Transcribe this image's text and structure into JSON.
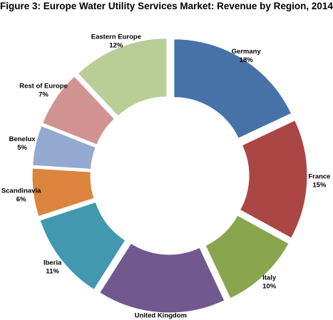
{
  "title": "Figure 3: Europe Water Utility Services Market: Revenue by Region, 2014",
  "chart_data": {
    "type": "pie",
    "variant": "exploded-donut",
    "categories": [
      "Germany",
      "France",
      "Italy",
      "United Kingdom",
      "Iberia",
      "Scandinavia",
      "Benelux",
      "Rest of Europe",
      "Eastern Europe"
    ],
    "values": [
      18,
      15,
      10,
      16,
      11,
      6,
      5,
      7,
      12
    ],
    "labels": [
      "18%",
      "15%",
      "10%",
      "16%",
      "11%",
      "6%",
      "5%",
      "7%",
      "12%"
    ],
    "colors": [
      "#4672A8",
      "#AA4643",
      "#89A54E",
      "#71588F",
      "#4198AF",
      "#DB843D",
      "#93A9CF",
      "#D19392",
      "#B9CD96"
    ],
    "unit": "%",
    "legend": "none",
    "data_labels": "outside"
  }
}
